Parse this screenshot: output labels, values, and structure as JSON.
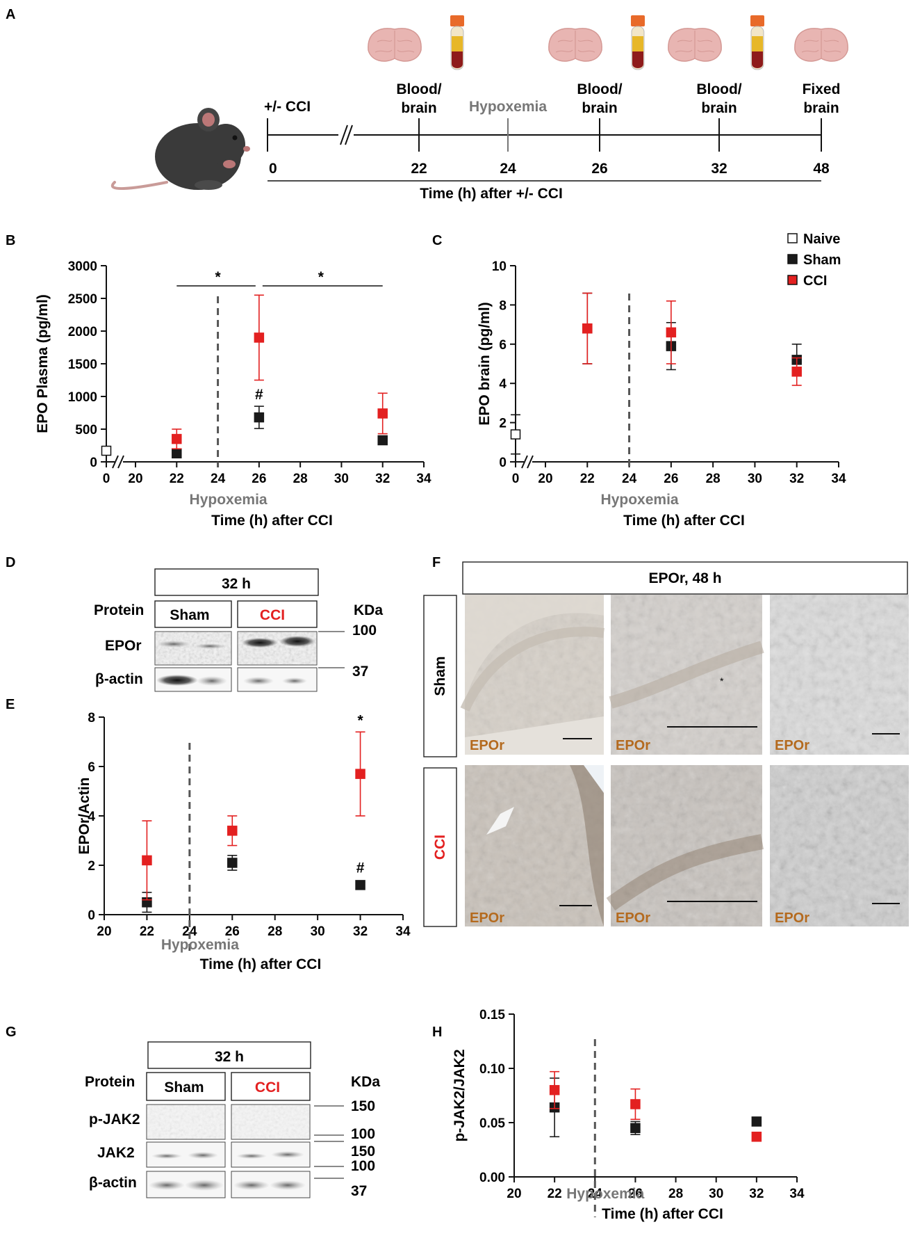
{
  "panels": {
    "A": "A",
    "B": "B",
    "C": "C",
    "D": "D",
    "E": "E",
    "F": "F",
    "G": "G",
    "H": "H"
  },
  "timeline": {
    "start_label": "+/- CCI",
    "events": [
      {
        "h": 22,
        "label": [
          "Blood/",
          "brain"
        ],
        "icons": [
          "brain-icon",
          "blood-tube-icon"
        ]
      },
      {
        "h": 24,
        "label": [
          "Hypoxemia"
        ],
        "icons": []
      },
      {
        "h": 26,
        "label": [
          "Blood/",
          "brain"
        ],
        "icons": [
          "brain-icon",
          "blood-tube-icon"
        ]
      },
      {
        "h": 32,
        "label": [
          "Blood/",
          "brain"
        ],
        "icons": [
          "brain-icon",
          "blood-tube-icon"
        ]
      },
      {
        "h": 48,
        "label": [
          "Fixed",
          "brain"
        ],
        "icons": [
          "brain-icon"
        ]
      }
    ],
    "ticks": [
      "0",
      "22",
      "24",
      "26",
      "32",
      "48"
    ],
    "axis_title": "Time (h) after +/- CCI"
  },
  "legend": [
    {
      "label": "Naive",
      "color": "#ffffff"
    },
    {
      "label": "Sham",
      "color": "#1a1a1a"
    },
    {
      "label": "CCI",
      "color": "#e32020"
    }
  ],
  "common": {
    "hypoxemia": "Hypoxemia",
    "xlabel": "Time (h) after CCI"
  },
  "chart_data": [
    {
      "panel": "B",
      "type": "scatter",
      "ylabel": "EPO Plasma (pg/ml)",
      "xlabel": "Time (h) after CCI",
      "xlim": [
        0,
        34
      ],
      "ylim": [
        0,
        3000
      ],
      "xticks": [
        "0",
        "20",
        "22",
        "24",
        "26",
        "28",
        "30",
        "32",
        "34"
      ],
      "yticks": [
        "0",
        "500",
        "1000",
        "1500",
        "2000",
        "2500",
        "3000"
      ],
      "naive": {
        "x": 0,
        "y": 170,
        "err": 0
      },
      "series": [
        {
          "name": "Sham",
          "color": "#1a1a1a",
          "x": [
            22,
            26,
            32
          ],
          "y": [
            130,
            680,
            330
          ],
          "err": [
            0,
            170,
            0
          ]
        },
        {
          "name": "CCI",
          "color": "#e32020",
          "x": [
            22,
            26,
            32
          ],
          "y": [
            350,
            1900,
            740
          ],
          "err": [
            150,
            650,
            310
          ]
        }
      ],
      "annotations": [
        "*",
        "*",
        "#"
      ],
      "hypoxemia_x": 24
    },
    {
      "panel": "C",
      "type": "scatter",
      "ylabel": "EPO brain (pg/ml)",
      "xlabel": "Time (h) after CCI",
      "xlim": [
        0,
        34
      ],
      "ylim": [
        0,
        10
      ],
      "xticks": [
        "0",
        "20",
        "22",
        "24",
        "26",
        "28",
        "30",
        "32",
        "34"
      ],
      "yticks": [
        "0",
        "2",
        "4",
        "6",
        "8",
        "10"
      ],
      "naive": {
        "x": 0,
        "y": 1.4,
        "err": 1.0
      },
      "series": [
        {
          "name": "Sham",
          "color": "#1a1a1a",
          "x": [
            22,
            26,
            32
          ],
          "y": [
            6.8,
            5.9,
            5.2
          ],
          "err": [
            1.8,
            1.2,
            0.8
          ]
        },
        {
          "name": "CCI",
          "color": "#e32020",
          "x": [
            22,
            26,
            32
          ],
          "y": [
            6.8,
            6.6,
            4.6
          ],
          "err": [
            1.8,
            1.6,
            0.7
          ]
        }
      ],
      "hypoxemia_x": 24
    },
    {
      "panel": "E",
      "type": "scatter",
      "ylabel": "EPOr/Actin",
      "xlabel": "Time (h) after CCI",
      "xlim": [
        20,
        34
      ],
      "ylim": [
        0,
        8
      ],
      "xticks": [
        "20",
        "22",
        "24",
        "26",
        "28",
        "30",
        "32",
        "34"
      ],
      "yticks": [
        "0",
        "2",
        "4",
        "6",
        "8"
      ],
      "series": [
        {
          "name": "Sham",
          "color": "#1a1a1a",
          "x": [
            22,
            26,
            32
          ],
          "y": [
            0.5,
            2.1,
            1.2
          ],
          "err": [
            0.4,
            0.3,
            0.1
          ]
        },
        {
          "name": "CCI",
          "color": "#e32020",
          "x": [
            22,
            26,
            32
          ],
          "y": [
            2.2,
            3.4,
            5.7
          ],
          "err": [
            1.6,
            0.6,
            1.7
          ]
        }
      ],
      "annotations": [
        "*",
        "#"
      ],
      "hypoxemia_x": 24
    },
    {
      "panel": "H",
      "type": "scatter",
      "ylabel": "p-JAK2/JAK2",
      "xlabel": "Time (h) after CCI",
      "xlim": [
        20,
        34
      ],
      "ylim": [
        0,
        0.15
      ],
      "xticks": [
        "20",
        "22",
        "24",
        "26",
        "28",
        "30",
        "32",
        "34"
      ],
      "yticks": [
        "0.00",
        "0.05",
        "0.10",
        "0.15"
      ],
      "series": [
        {
          "name": "Sham",
          "color": "#1a1a1a",
          "x": [
            22,
            26,
            32
          ],
          "y": [
            0.064,
            0.045,
            0.051
          ],
          "err": [
            0.027,
            0.006,
            0.004
          ]
        },
        {
          "name": "CCI",
          "color": "#e32020",
          "x": [
            22,
            26,
            32
          ],
          "y": [
            0.08,
            0.067,
            0.037
          ],
          "err": [
            0.017,
            0.014,
            0.004
          ]
        }
      ],
      "hypoxemia_x": 24
    }
  ],
  "blot_D": {
    "time": "32 h",
    "protein": "Protein",
    "sham": "Sham",
    "cci": "CCI",
    "kda": "KDa",
    "rows": [
      "EPOr",
      "β-actin"
    ],
    "markers": [
      "100",
      "37"
    ]
  },
  "blot_G": {
    "time": "32 h",
    "protein": "Protein",
    "sham": "Sham",
    "cci": "CCI",
    "kda": "KDa",
    "rows": [
      "p-JAK2",
      "JAK2",
      "β-actin"
    ],
    "markers": [
      "150",
      "100",
      "150",
      "100",
      "37"
    ]
  },
  "histology_F": {
    "title": "EPOr, 48 h",
    "rows": [
      "Sham",
      "CCI"
    ],
    "stain": "EPOr",
    "marker": "*"
  }
}
